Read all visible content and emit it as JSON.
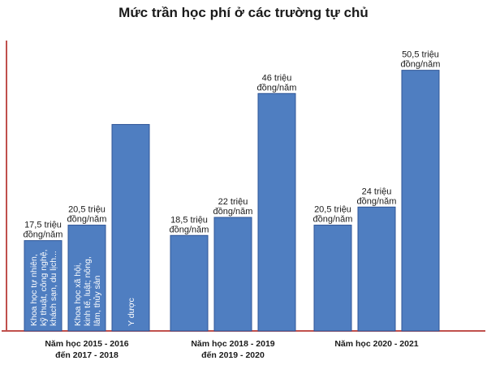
{
  "title": "Mức trần học phí ở các trường tự chủ",
  "colors": {
    "bar": "#4f7ec1",
    "bar_border": "#2f5597",
    "axis": "#c0504d"
  },
  "chart_data": {
    "type": "bar",
    "title": "Mức trần học phí ở các trường tự chủ",
    "unit": "triệu đồng/năm",
    "xlabel": "",
    "ylabel": "",
    "ylim": [
      0,
      55
    ],
    "grid": false,
    "legend": "none",
    "groups": [
      {
        "label_lines": [
          "Năm  học 2015 - 2016",
          "đến 2017 - 2018"
        ],
        "bars": [
          {
            "value": 17.5,
            "label_lines": [
              "17,5 triệu",
              "đồng/năm"
            ],
            "inbar": [
              "Khoa học tự nhiên,",
              "kỹ thuật, công nghệ,",
              "khách sạn, du lịch..."
            ]
          },
          {
            "value": 20.5,
            "label_lines": [
              "20,5 triệu",
              "đồng/năm"
            ],
            "inbar": [
              "Khoa học xã hội,",
              "kinh tế, luật; nông,",
              "lâm, thủy sản"
            ]
          },
          {
            "value": 40,
            "label_lines": [],
            "inbar": [
              "Y dược"
            ]
          }
        ]
      },
      {
        "label_lines": [
          "Năm  học 2018 - 2019",
          "đến 2019 - 2020"
        ],
        "bars": [
          {
            "value": 18.5,
            "label_lines": [
              "18,5 triệu",
              "đồng/năm"
            ],
            "inbar": []
          },
          {
            "value": 22,
            "label_lines": [
              "22 triệu",
              "đồng/năm"
            ],
            "inbar": []
          },
          {
            "value": 46,
            "label_lines": [
              "46 triệu",
              "đồng/năm"
            ],
            "inbar": []
          }
        ]
      },
      {
        "label_lines": [
          "Năm học 2020 - 2021"
        ],
        "bars": [
          {
            "value": 20.5,
            "label_lines": [
              "20,5 triệu",
              "đồng/năm"
            ],
            "inbar": []
          },
          {
            "value": 24,
            "label_lines": [
              "24 triệu",
              "đồng/năm"
            ],
            "inbar": []
          },
          {
            "value": 50.5,
            "label_lines": [
              "50,5 triệu",
              "đồng/năm"
            ],
            "inbar": []
          }
        ]
      }
    ]
  }
}
